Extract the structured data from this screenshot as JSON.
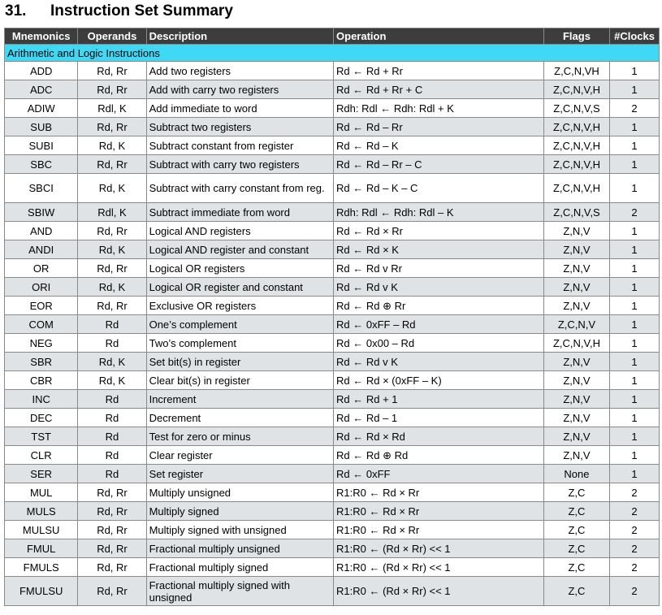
{
  "heading": {
    "number": "31.",
    "title": "Instruction Set Summary"
  },
  "table": {
    "headers": {
      "mnemonics": "Mnemonics",
      "operands": "Operands",
      "description": "Description",
      "operation": "Operation",
      "flags": "Flags",
      "clocks": "#Clocks"
    },
    "section_title": "Arithmetic and Logic Instructions",
    "rows": [
      {
        "mnemonic": "ADD",
        "operands": "Rd, Rr",
        "description": "Add two registers",
        "operation": "Rd ← Rd + Rr",
        "flags": "Z,C,N,VH",
        "clocks": "1"
      },
      {
        "mnemonic": "ADC",
        "operands": "Rd, Rr",
        "description": "Add with carry two registers",
        "operation": "Rd ← Rd + Rr + C",
        "flags": "Z,C,N,V,H",
        "clocks": "1"
      },
      {
        "mnemonic": "ADIW",
        "operands": "Rdl, K",
        "description": "Add immediate to word",
        "operation": "Rdh: Rdl ← Rdh: Rdl + K",
        "flags": "Z,C,N,V,S",
        "clocks": "2"
      },
      {
        "mnemonic": "SUB",
        "operands": "Rd, Rr",
        "description": "Subtract two registers",
        "operation": "Rd ← Rd – Rr",
        "flags": "Z,C,N,V,H",
        "clocks": "1"
      },
      {
        "mnemonic": "SUBI",
        "operands": "Rd, K",
        "description": "Subtract constant from register",
        "operation": "Rd ← Rd – K",
        "flags": "Z,C,N,V,H",
        "clocks": "1"
      },
      {
        "mnemonic": "SBC",
        "operands": "Rd, Rr",
        "description": "Subtract with carry two registers",
        "operation": "Rd ← Rd – Rr – C",
        "flags": "Z,C,N,V,H",
        "clocks": "1"
      },
      {
        "mnemonic": "SBCI",
        "operands": "Rd, K",
        "description": "Subtract with carry constant from reg.",
        "operation": "Rd ← Rd – K – C",
        "flags": "Z,C,N,V,H",
        "clocks": "1"
      },
      {
        "mnemonic": "SBIW",
        "operands": "Rdl, K",
        "description": "Subtract immediate from word",
        "operation": "Rdh: Rdl ← Rdh: Rdl – K",
        "flags": "Z,C,N,V,S",
        "clocks": "2"
      },
      {
        "mnemonic": "AND",
        "operands": "Rd, Rr",
        "description": "Logical AND registers",
        "operation": "Rd ← Rd × Rr",
        "flags": "Z,N,V",
        "clocks": "1"
      },
      {
        "mnemonic": "ANDI",
        "operands": "Rd, K",
        "description": "Logical AND register and constant",
        "operation": "Rd ← Rd × K",
        "flags": "Z,N,V",
        "clocks": "1"
      },
      {
        "mnemonic": "OR",
        "operands": "Rd, Rr",
        "description": "Logical OR registers",
        "operation": "Rd ← Rd v Rr",
        "flags": "Z,N,V",
        "clocks": "1"
      },
      {
        "mnemonic": "ORI",
        "operands": "Rd, K",
        "description": "Logical OR register and constant",
        "operation": "Rd ← Rd v K",
        "flags": "Z,N,V",
        "clocks": "1"
      },
      {
        "mnemonic": "EOR",
        "operands": "Rd, Rr",
        "description": "Exclusive OR registers",
        "operation": "Rd ← Rd ⊕ Rr",
        "flags": "Z,N,V",
        "clocks": "1"
      },
      {
        "mnemonic": "COM",
        "operands": "Rd",
        "description": "One’s complement",
        "operation": "Rd ← 0xFF – Rd",
        "flags": "Z,C,N,V",
        "clocks": "1"
      },
      {
        "mnemonic": "NEG",
        "operands": "Rd",
        "description": "Two’s complement",
        "operation": "Rd ← 0x00 – Rd",
        "flags": "Z,C,N,V,H",
        "clocks": "1"
      },
      {
        "mnemonic": "SBR",
        "operands": "Rd, K",
        "description": "Set bit(s) in register",
        "operation": "Rd ← Rd v K",
        "flags": "Z,N,V",
        "clocks": "1"
      },
      {
        "mnemonic": "CBR",
        "operands": "Rd, K",
        "description": "Clear bit(s) in register",
        "operation": "Rd ← Rd × (0xFF – K)",
        "flags": "Z,N,V",
        "clocks": "1"
      },
      {
        "mnemonic": "INC",
        "operands": "Rd",
        "description": "Increment",
        "operation": "Rd ← Rd + 1",
        "flags": "Z,N,V",
        "clocks": "1"
      },
      {
        "mnemonic": "DEC",
        "operands": "Rd",
        "description": "Decrement",
        "operation": "Rd ← Rd – 1",
        "flags": "Z,N,V",
        "clocks": "1"
      },
      {
        "mnemonic": "TST",
        "operands": "Rd",
        "description": "Test for zero or minus",
        "operation": "Rd ← Rd × Rd",
        "flags": "Z,N,V",
        "clocks": "1"
      },
      {
        "mnemonic": "CLR",
        "operands": "Rd",
        "description": "Clear register",
        "operation": "Rd  ← Rd ⊕ Rd",
        "flags": "Z,N,V",
        "clocks": "1"
      },
      {
        "mnemonic": "SER",
        "operands": "Rd",
        "description": "Set register",
        "operation": "Rd ← 0xFF",
        "flags": "None",
        "clocks": "1"
      },
      {
        "mnemonic": "MUL",
        "operands": "Rd, Rr",
        "description": "Multiply unsigned",
        "operation": "R1:R0 ← Rd × Rr",
        "flags": "Z,C",
        "clocks": "2"
      },
      {
        "mnemonic": "MULS",
        "operands": "Rd, Rr",
        "description": "Multiply signed",
        "operation": "R1:R0 ← Rd × Rr",
        "flags": "Z,C",
        "clocks": "2"
      },
      {
        "mnemonic": "MULSU",
        "operands": "Rd, Rr",
        "description": "Multiply signed with unsigned",
        "operation": "R1:R0 ← Rd × Rr",
        "flags": "Z,C",
        "clocks": "2"
      },
      {
        "mnemonic": "FMUL",
        "operands": "Rd, Rr",
        "description": "Fractional multiply unsigned",
        "operation": "R1:R0 ← (Rd × Rr) << 1",
        "flags": "Z,C",
        "clocks": "2"
      },
      {
        "mnemonic": "FMULS",
        "operands": "Rd, Rr",
        "description": "Fractional multiply signed",
        "operation": "R1:R0 ← (Rd × Rr) << 1",
        "flags": "Z,C",
        "clocks": "2"
      },
      {
        "mnemonic": "FMULSU",
        "operands": "Rd, Rr",
        "description": "Fractional multiply signed with unsigned",
        "operation": "R1:R0 ← (Rd × Rr) << 1",
        "flags": "Z,C",
        "clocks": "2"
      }
    ]
  },
  "colors": {
    "header_background": "#3d3d3d",
    "section_background": "#3fd8f5",
    "row_shaded": "#dfe3e5",
    "row_plain": "#ffffff"
  }
}
